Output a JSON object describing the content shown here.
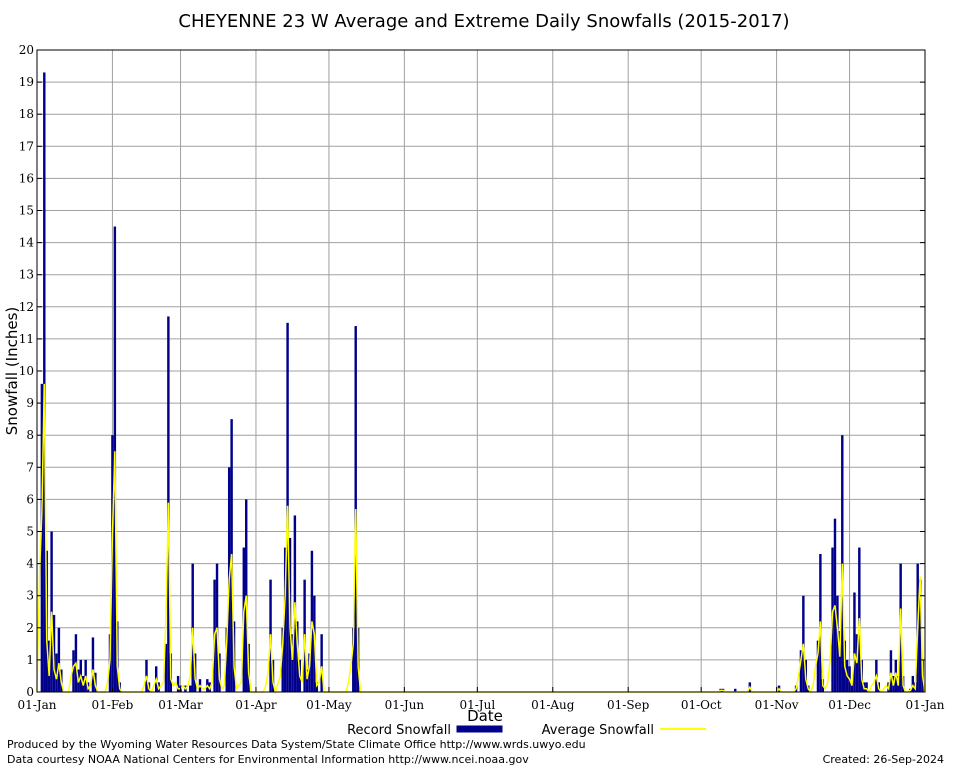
{
  "chart_data": {
    "type": "bar",
    "title": "CHEYENNE 23 W Average and Extreme Daily Snowfalls (2015-2017)",
    "xlabel": "Date",
    "ylabel": "Snowfall (Inches)",
    "ylim": [
      0,
      20
    ],
    "y_ticks": [
      "0",
      "1",
      "2",
      "3",
      "4",
      "5",
      "6",
      "7",
      "8",
      "9",
      "10",
      "11",
      "12",
      "13",
      "14",
      "15",
      "16",
      "17",
      "18",
      "19",
      "20"
    ],
    "x_tick_labels": [
      "01-Jan",
      "01-Feb",
      "01-Mar",
      "01-Apr",
      "01-May",
      "01-Jun",
      "01-Jul",
      "01-Aug",
      "01-Sep",
      "01-Oct",
      "01-Nov",
      "01-Dec",
      "01-Jan"
    ],
    "x_tick_days": [
      1,
      32,
      60,
      91,
      121,
      152,
      182,
      213,
      244,
      274,
      305,
      335,
      366
    ],
    "grid": true,
    "legend_placement": "bottom",
    "colors": {
      "record": "#00008b",
      "average": "#ffff00",
      "grid": "#a0a0a0"
    },
    "series": [
      {
        "name": "Record Snowfall",
        "type": "bar",
        "points": [
          [
            3,
            9.6
          ],
          [
            4,
            19.3
          ],
          [
            5,
            4.4
          ],
          [
            6,
            1.6
          ],
          [
            7,
            5.0
          ],
          [
            8,
            2.4
          ],
          [
            9,
            1.2
          ],
          [
            10,
            2.0
          ],
          [
            11,
            0.7
          ],
          [
            16,
            1.3
          ],
          [
            17,
            1.8
          ],
          [
            18,
            0.7
          ],
          [
            19,
            1.0
          ],
          [
            20,
            0.5
          ],
          [
            21,
            1.0
          ],
          [
            22,
            0.3
          ],
          [
            24,
            1.7
          ],
          [
            25,
            0.6
          ],
          [
            31,
            1.8
          ],
          [
            32,
            8.0
          ],
          [
            33,
            14.5
          ],
          [
            34,
            2.2
          ],
          [
            35,
            0.3
          ],
          [
            46,
            1.0
          ],
          [
            47,
            0.3
          ],
          [
            50,
            0.8
          ],
          [
            51,
            0.3
          ],
          [
            54,
            1.5
          ],
          [
            55,
            11.7
          ],
          [
            56,
            1.2
          ],
          [
            59,
            0.5
          ],
          [
            60,
            0.2
          ],
          [
            62,
            0.2
          ],
          [
            64,
            0.2
          ],
          [
            65,
            4.0
          ],
          [
            66,
            1.2
          ],
          [
            68,
            0.4
          ],
          [
            71,
            0.4
          ],
          [
            72,
            0.3
          ],
          [
            74,
            3.5
          ],
          [
            75,
            4.0
          ],
          [
            76,
            1.2
          ],
          [
            79,
            2.0
          ],
          [
            80,
            7.0
          ],
          [
            81,
            8.5
          ],
          [
            82,
            2.2
          ],
          [
            86,
            4.5
          ],
          [
            87,
            6.0
          ],
          [
            88,
            1.5
          ],
          [
            97,
            3.5
          ],
          [
            98,
            1.0
          ],
          [
            102,
            2.0
          ],
          [
            103,
            4.5
          ],
          [
            104,
            11.5
          ],
          [
            105,
            4.8
          ],
          [
            106,
            1.8
          ],
          [
            107,
            5.5
          ],
          [
            108,
            2.2
          ],
          [
            109,
            1.0
          ],
          [
            111,
            3.5
          ],
          [
            112,
            0.7
          ],
          [
            113,
            1.2
          ],
          [
            114,
            4.4
          ],
          [
            115,
            3.0
          ],
          [
            116,
            0.3
          ],
          [
            118,
            1.8
          ],
          [
            131,
            2.0
          ],
          [
            132,
            11.4
          ],
          [
            133,
            2.0
          ],
          [
            282,
            0.1
          ],
          [
            283,
            0.1
          ],
          [
            288,
            0.1
          ],
          [
            294,
            0.3
          ],
          [
            306,
            0.2
          ],
          [
            313,
            0.2
          ],
          [
            315,
            1.3
          ],
          [
            316,
            3.0
          ],
          [
            317,
            1.0
          ],
          [
            318,
            0.2
          ],
          [
            322,
            1.6
          ],
          [
            323,
            4.3
          ],
          [
            324,
            0.4
          ],
          [
            328,
            4.5
          ],
          [
            329,
            5.4
          ],
          [
            330,
            3.0
          ],
          [
            331,
            1.9
          ],
          [
            332,
            8.0
          ],
          [
            333,
            1.6
          ],
          [
            334,
            1.0
          ],
          [
            335,
            0.8
          ],
          [
            336,
            0.3
          ],
          [
            337,
            3.1
          ],
          [
            338,
            1.8
          ],
          [
            339,
            4.5
          ],
          [
            340,
            1.0
          ],
          [
            341,
            0.3
          ],
          [
            342,
            0.3
          ],
          [
            346,
            1.0
          ],
          [
            347,
            0.3
          ],
          [
            351,
            0.3
          ],
          [
            352,
            1.3
          ],
          [
            353,
            0.5
          ],
          [
            354,
            1.0
          ],
          [
            355,
            0.5
          ],
          [
            356,
            4.0
          ],
          [
            357,
            0.5
          ],
          [
            360,
            0.1
          ],
          [
            361,
            0.5
          ],
          [
            362,
            0.3
          ],
          [
            363,
            4.0
          ],
          [
            364,
            3.5
          ],
          [
            365,
            1.0
          ]
        ]
      },
      {
        "name": "Average Snowfall",
        "type": "line",
        "points": [
          [
            1,
            0
          ],
          [
            2,
            3.6
          ],
          [
            3,
            5.6
          ],
          [
            4,
            9.6
          ],
          [
            5,
            1.6
          ],
          [
            6,
            0.5
          ],
          [
            7,
            2.5
          ],
          [
            8,
            0.7
          ],
          [
            9,
            0.4
          ],
          [
            10,
            0.9
          ],
          [
            11,
            0.3
          ],
          [
            12,
            0
          ],
          [
            14,
            0
          ],
          [
            15,
            0.5
          ],
          [
            16,
            0.8
          ],
          [
            17,
            0.9
          ],
          [
            18,
            0.3
          ],
          [
            19,
            0.5
          ],
          [
            20,
            0.2
          ],
          [
            21,
            0.5
          ],
          [
            22,
            0.1
          ],
          [
            23,
            0.2
          ],
          [
            24,
            0.7
          ],
          [
            25,
            0.2
          ],
          [
            26,
            0
          ],
          [
            29,
            0
          ],
          [
            30,
            0.3
          ],
          [
            31,
            1.0
          ],
          [
            32,
            4.9
          ],
          [
            33,
            7.5
          ],
          [
            34,
            0.8
          ],
          [
            35,
            0.1
          ],
          [
            36,
            0
          ],
          [
            44,
            0
          ],
          [
            45,
            0.2
          ],
          [
            46,
            0.5
          ],
          [
            47,
            0.1
          ],
          [
            48,
            0
          ],
          [
            49,
            0.2
          ],
          [
            50,
            0.4
          ],
          [
            51,
            0.1
          ],
          [
            53,
            0.3
          ],
          [
            54,
            2.3
          ],
          [
            55,
            5.9
          ],
          [
            56,
            0.4
          ],
          [
            57,
            0.2
          ],
          [
            58,
            0.3
          ],
          [
            59,
            0.1
          ],
          [
            60,
            0.1
          ],
          [
            61,
            0.2
          ],
          [
            62,
            0.1
          ],
          [
            63,
            0.2
          ],
          [
            64,
            0.5
          ],
          [
            65,
            2.0
          ],
          [
            66,
            0.4
          ],
          [
            67,
            0.1
          ],
          [
            68,
            0.2
          ],
          [
            69,
            0.1
          ],
          [
            70,
            0.1
          ],
          [
            71,
            0.2
          ],
          [
            72,
            0.1
          ],
          [
            73,
            0.3
          ],
          [
            74,
            1.8
          ],
          [
            75,
            2.0
          ],
          [
            76,
            0.4
          ],
          [
            77,
            0.1
          ],
          [
            78,
            0.2
          ],
          [
            79,
            1.6
          ],
          [
            80,
            3.5
          ],
          [
            81,
            4.3
          ],
          [
            82,
            0.8
          ],
          [
            83,
            0.1
          ],
          [
            84,
            0.2
          ],
          [
            85,
            0.3
          ],
          [
            86,
            2.5
          ],
          [
            87,
            3.0
          ],
          [
            88,
            0.6
          ],
          [
            89,
            0
          ],
          [
            94,
            0
          ],
          [
            95,
            0.2
          ],
          [
            96,
            0.6
          ],
          [
            97,
            1.8
          ],
          [
            98,
            0.3
          ],
          [
            99,
            0
          ],
          [
            101,
            0.5
          ],
          [
            102,
            1.5
          ],
          [
            103,
            3.0
          ],
          [
            104,
            5.8
          ],
          [
            105,
            2.0
          ],
          [
            106,
            1.0
          ],
          [
            107,
            2.8
          ],
          [
            108,
            1.5
          ],
          [
            109,
            0.5
          ],
          [
            110,
            0.3
          ],
          [
            111,
            1.8
          ],
          [
            112,
            0.4
          ],
          [
            113,
            0.8
          ],
          [
            114,
            2.2
          ],
          [
            115,
            1.8
          ],
          [
            116,
            0.2
          ],
          [
            117,
            0.3
          ],
          [
            118,
            0.8
          ],
          [
            119,
            0
          ],
          [
            128,
            0
          ],
          [
            129,
            0.3
          ],
          [
            130,
            0.8
          ],
          [
            131,
            1.5
          ],
          [
            132,
            5.7
          ],
          [
            133,
            0.8
          ],
          [
            134,
            0
          ],
          [
            281,
            0
          ],
          [
            282,
            0.05
          ],
          [
            283,
            0.05
          ],
          [
            284,
            0
          ],
          [
            293,
            0
          ],
          [
            294,
            0.15
          ],
          [
            295,
            0
          ],
          [
            305,
            0
          ],
          [
            306,
            0.1
          ],
          [
            307,
            0
          ],
          [
            312,
            0
          ],
          [
            313,
            0.1
          ],
          [
            314,
            0.5
          ],
          [
            315,
            1.0
          ],
          [
            316,
            1.5
          ],
          [
            317,
            0.4
          ],
          [
            318,
            0.1
          ],
          [
            319,
            0
          ],
          [
            320,
            0.2
          ],
          [
            321,
            0.8
          ],
          [
            322,
            1.2
          ],
          [
            323,
            2.2
          ],
          [
            324,
            0.2
          ],
          [
            325,
            0.1
          ],
          [
            326,
            0.3
          ],
          [
            327,
            1.0
          ],
          [
            328,
            2.5
          ],
          [
            329,
            2.7
          ],
          [
            330,
            2.0
          ],
          [
            331,
            1.1
          ],
          [
            332,
            4.0
          ],
          [
            333,
            0.8
          ],
          [
            334,
            0.5
          ],
          [
            335,
            0.4
          ],
          [
            336,
            0.2
          ],
          [
            337,
            1.2
          ],
          [
            338,
            0.9
          ],
          [
            339,
            2.3
          ],
          [
            340,
            0.4
          ],
          [
            341,
            0.1
          ],
          [
            342,
            0.1
          ],
          [
            343,
            0
          ],
          [
            344,
            0.2
          ],
          [
            345,
            0.3
          ],
          [
            346,
            0.5
          ],
          [
            347,
            0.1
          ],
          [
            348,
            0
          ],
          [
            350,
            0.2
          ],
          [
            351,
            0.1
          ],
          [
            352,
            0.6
          ],
          [
            353,
            0.2
          ],
          [
            354,
            0.6
          ],
          [
            355,
            0.2
          ],
          [
            356,
            2.6
          ],
          [
            357,
            0.2
          ],
          [
            358,
            0
          ],
          [
            360,
            0.05
          ],
          [
            361,
            0.2
          ],
          [
            362,
            0.1
          ],
          [
            363,
            2.0
          ],
          [
            364,
            3.6
          ],
          [
            365,
            0.5
          ],
          [
            366,
            0
          ]
        ]
      }
    ]
  },
  "footer": {
    "credit_line1": "Produced by the Wyoming Water Resources Data System/State Climate Office http://www.wrds.uwyo.edu",
    "credit_line2": "Data courtesy NOAA National Centers for Environmental Information http://www.ncei.noaa.gov",
    "created": "Created:  26-Sep-2024"
  }
}
